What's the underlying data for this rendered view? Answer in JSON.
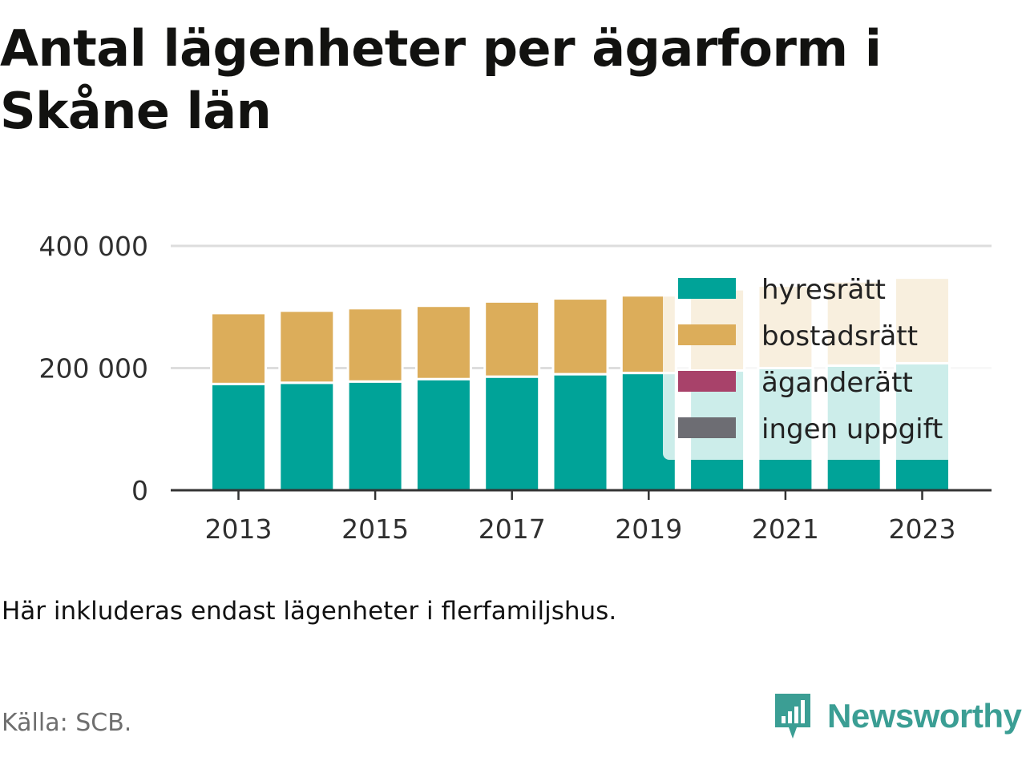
{
  "title": "Antal lägenheter per ägarform i Skåne län",
  "note": "Här inkluderas endast lägenheter i flerfamiljshus.",
  "source": "Källa: SCB.",
  "brand": {
    "name": "Newsworthy",
    "icon": "newsworthy-bar-chart-icon",
    "color": "#3b9e94"
  },
  "colors": {
    "background": "#ffffff",
    "gridline": "#dddddd",
    "axis": "#333333"
  },
  "chart_data": {
    "type": "bar",
    "stacked": true,
    "categories": [
      "2013",
      "2014",
      "2015",
      "2016",
      "2017",
      "2018",
      "2019",
      "2020",
      "2021",
      "2022",
      "2023"
    ],
    "x_tick_labels": [
      "2013",
      "2015",
      "2017",
      "2019",
      "2021",
      "2023"
    ],
    "y_ticks": [
      0,
      200000,
      400000
    ],
    "y_tick_labels": [
      "0",
      "200 000",
      "400 000"
    ],
    "ylim": [
      0,
      400000
    ],
    "grid": true,
    "legend_position": "top-right",
    "series": [
      {
        "name": "hyresrätt",
        "color": "#00a398",
        "values": [
          174000,
          176000,
          178000,
          182000,
          186000,
          190000,
          192000,
          196000,
          200000,
          204000,
          208000
        ]
      },
      {
        "name": "bostadsrätt",
        "color": "#dcad5a",
        "values": [
          116000,
          118000,
          120000,
          120000,
          123000,
          124000,
          127000,
          133000,
          135000,
          138000,
          140000
        ]
      },
      {
        "name": "äganderätt",
        "color": "#a8426a",
        "values": [
          0,
          0,
          0,
          0,
          0,
          0,
          0,
          0,
          0,
          0,
          0
        ]
      },
      {
        "name": "ingen uppgift",
        "color": "#6d6d73",
        "values": [
          0,
          0,
          0,
          0,
          0,
          0,
          0,
          0,
          0,
          0,
          0
        ]
      }
    ]
  }
}
